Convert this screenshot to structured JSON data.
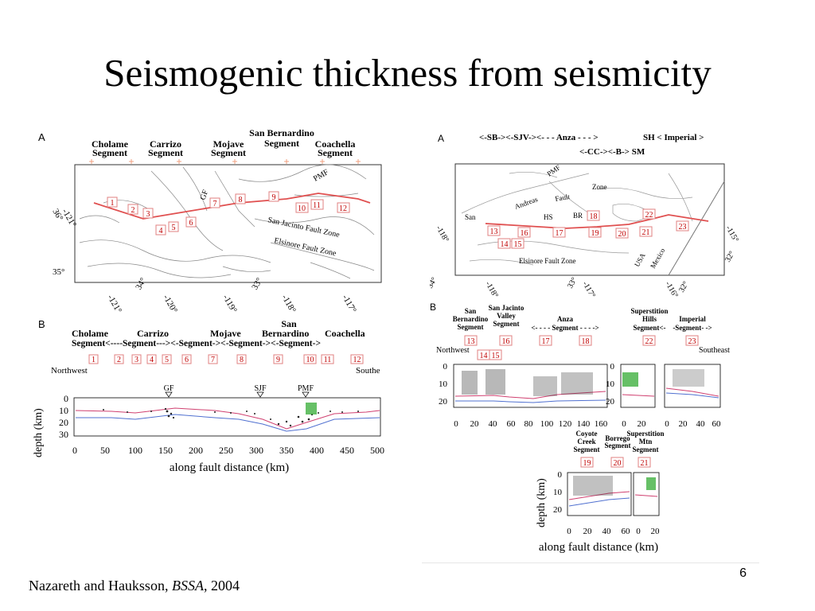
{
  "slide": {
    "title": "Seismogenic thickness from seismicity",
    "footer_authors": "Nazareth and Hauksson, ",
    "footer_journal": "BSSA",
    "footer_year": ", 2004",
    "page_number": "6"
  },
  "left_figure": {
    "panel_a_label": "A",
    "panel_b_label": "B",
    "map_segments": [
      {
        "line1": "Cholame",
        "line2": "Segment"
      },
      {
        "line1": "Carrizo",
        "line2": "Segment"
      },
      {
        "line1": "Mojave",
        "line2": "Segment"
      },
      {
        "line1": "San Bernardino",
        "line2": "Segment"
      },
      {
        "line1": "Coachella",
        "line2": "Segment"
      }
    ],
    "map_labels": {
      "gf": "GF",
      "pmf": "PMF",
      "sjfz": "San Jacinto Fault Zone",
      "efz": "Elsinore Fault Zone"
    },
    "map_numbers": [
      "1",
      "2",
      "3",
      "4",
      "5",
      "6",
      "7",
      "8",
      "9",
      "10",
      "11",
      "12"
    ],
    "lat_labels": [
      "36°",
      "35°"
    ],
    "lon_labels": [
      "-121°",
      "34°",
      "-120°",
      "-119°",
      "33°",
      "-118°",
      "-117°"
    ],
    "map_corner_lon": "-121°",
    "section_header": {
      "cholame": "Cholame",
      "segment_row": "Segment<----Segment---><-Segment-><-Segment-><-Segment->",
      "carrizo": "Carrizo",
      "mojave": "Mojave",
      "san": "San",
      "bernardino": "Bernardino",
      "coachella": "Coachella"
    },
    "section_numbers": [
      "1",
      "2",
      "3",
      "4",
      "5",
      "6",
      "7",
      "8",
      "9",
      "10",
      "11",
      "12"
    ],
    "northwest": "Northwest",
    "southeast": "Southe",
    "faults": [
      "GF",
      "SJF",
      "PMF"
    ],
    "ylabel": "depth (km)",
    "xlabel": "along fault distance (km)",
    "yticks": [
      "0",
      "10",
      "20",
      "30"
    ],
    "xticks": [
      "0",
      "50",
      "100",
      "150",
      "200",
      "250",
      "300",
      "350",
      "400",
      "450",
      "500"
    ]
  },
  "right_figure": {
    "panel_a_label": "A",
    "panel_b_label": "B",
    "header_row1": "<-SB-><-SJV-><- - - Anza - - - >",
    "header_row1b": "SH < Imperial >",
    "header_row2": "<-CC-><-B-> SM",
    "map_labels": {
      "pmf": "PMF",
      "zone": "Zone",
      "san": "San",
      "andreas": "Andreas",
      "fault": "Fault",
      "hs": "HS",
      "br": "BR",
      "efz": "Elsinore Fault Zone",
      "usa": "USA",
      "mexico": "Mexico"
    },
    "map_numbers": [
      "13",
      "14",
      "15",
      "16",
      "17",
      "18",
      "19",
      "20",
      "21",
      "22",
      "23"
    ],
    "coord_labels": [
      "-118°",
      "34°",
      "-118°",
      "33°",
      "-117°",
      "-116°",
      "32°",
      "-115°",
      "32°"
    ],
    "sec_headers": {
      "sb": [
        "San",
        "Bernardino",
        "Segment"
      ],
      "sjv": [
        "San Jacinto",
        "Valley",
        "Segment"
      ],
      "anza": [
        "Anza",
        "<- - - - Segment - - - ->"
      ],
      "shs": [
        "Superstition",
        "Hills",
        "Segment<-"
      ],
      "imperial": [
        "Imperial",
        "-Segment- ->"
      ],
      "coyote": [
        "Coyote",
        "Creek",
        "Segment"
      ],
      "borrego": [
        "Borrego",
        "Segment"
      ],
      "smtn": [
        "Superstition",
        "Mtn",
        "Segment"
      ]
    },
    "northwest": "Northwest",
    "southeast": "Southeast",
    "sec_numbers_top": [
      "13",
      "16",
      "17",
      "18",
      "22",
      "23"
    ],
    "sec_numbers_mid": [
      "14",
      "15"
    ],
    "sec_numbers_bottom": [
      "19",
      "20",
      "21"
    ],
    "yticks": [
      "0",
      "10",
      "20"
    ],
    "xticks_main": [
      "0",
      "20",
      "40",
      "60",
      "80",
      "100",
      "120",
      "140",
      "160"
    ],
    "xticks_imp_a": [
      "0",
      "20"
    ],
    "xticks_imp_b": [
      "0",
      "20",
      "40",
      "60"
    ],
    "xticks_cc": [
      "0",
      "20",
      "40",
      "60"
    ],
    "xticks_sm": [
      "0",
      "20"
    ],
    "ylabel": "depth (km)",
    "xlabel": "along fault distance (km)"
  }
}
